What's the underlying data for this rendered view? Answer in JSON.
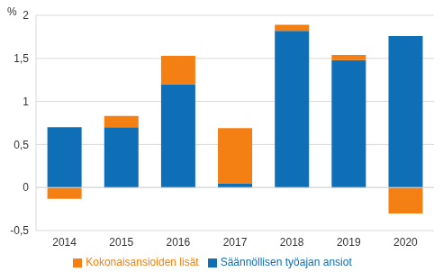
{
  "chart_data": {
    "type": "bar",
    "stacked": true,
    "y_label": "%",
    "categories": [
      "2014",
      "2015",
      "2016",
      "2017",
      "2018",
      "2019",
      "2020"
    ],
    "series": [
      {
        "name": "Säännöllisen työajan ansiot",
        "color": "#0e6fb7",
        "values": [
          0.7,
          0.7,
          1.2,
          0.05,
          1.82,
          1.48,
          1.76
        ]
      },
      {
        "name": "Kokonaisansioiden lisät",
        "color": "#f47f12",
        "values": [
          -0.13,
          0.13,
          0.33,
          0.64,
          0.07,
          0.06,
          -0.3
        ]
      }
    ],
    "ylim": [
      -0.5,
      2
    ],
    "yticks": [
      {
        "value": -0.5,
        "label": "-0,5"
      },
      0,
      {
        "value": 0.5,
        "label": "0,5"
      },
      1,
      {
        "value": 1.5,
        "label": "1,5"
      },
      2
    ],
    "grid": true,
    "legend": "bottom"
  }
}
